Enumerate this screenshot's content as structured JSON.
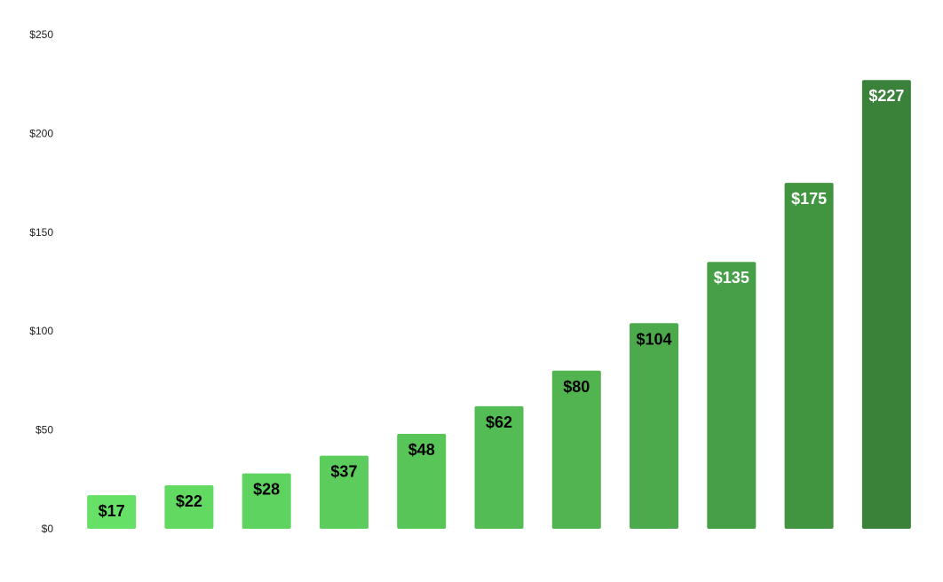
{
  "chart_data": {
    "type": "bar",
    "title": "",
    "xlabel": "",
    "ylabel": "",
    "ylim": [
      0,
      250
    ],
    "yticks": [
      0,
      50,
      100,
      150,
      200,
      250
    ],
    "ytick_labels": [
      "$0",
      "$50",
      "$100",
      "$150",
      "$200",
      "$250"
    ],
    "categories": [
      "",
      "",
      "",
      "",
      "",
      "",
      "",
      "",
      "",
      "",
      ""
    ],
    "values": [
      17,
      22,
      28,
      37,
      48,
      62,
      80,
      104,
      135,
      175,
      227
    ],
    "value_labels": [
      "$17",
      "$22",
      "$28",
      "$37",
      "$48",
      "$62",
      "$80",
      "$104",
      "$135",
      "$175",
      "$227"
    ],
    "bar_colors": [
      "#66e066",
      "#62da62",
      "#5fd35f",
      "#5ccd5c",
      "#58c558",
      "#54bc54",
      "#51b451",
      "#4caa4c",
      "#47a047",
      "#419541",
      "#3a813a"
    ],
    "label_colors": [
      "#000000",
      "#000000",
      "#000000",
      "#000000",
      "#000000",
      "#000000",
      "#000000",
      "#000000",
      "#ffffff",
      "#ffffff",
      "#ffffff"
    ],
    "grid": false,
    "legend": "none"
  }
}
